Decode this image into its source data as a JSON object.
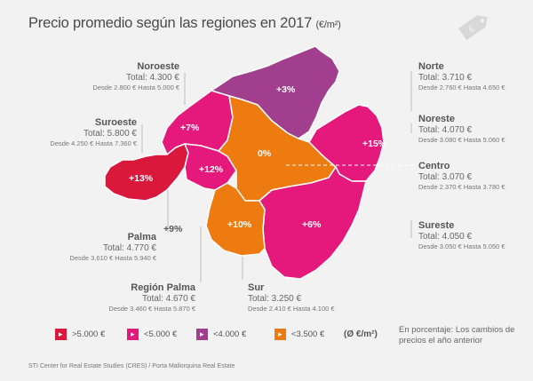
{
  "title": "Precio promedio según las regiones en 2017",
  "title_unit": "(€/m²)",
  "colors": {
    "red": "#d9183b",
    "pink": "#e5197c",
    "purple": "#a13f8e",
    "orange": "#ee7b10",
    "background": "#f2f2f2",
    "leader_line": "#bdbdbd"
  },
  "regions": {
    "noroeste": {
      "name": "Noroeste",
      "total": "Total: 4.300 €",
      "range": "Desde 2.800 € Hasta 5.000 €",
      "pct": "+7%"
    },
    "norte": {
      "name": "Norte",
      "total": "Total: 3.710 €",
      "range": "Desde 2.760 € Hasta 4.650 €",
      "pct": "+3%"
    },
    "suroeste": {
      "name": "Suroeste",
      "total": "Total: 5.800 €",
      "range": "Desde 4.250 € Hasta 7.360 €",
      "pct": "+13%"
    },
    "noreste": {
      "name": "Noreste",
      "total": "Total: 4.070 €",
      "range": "Desde 3.080 € Hasta 5.060 €",
      "pct": "+15%"
    },
    "centro": {
      "name": "Centro",
      "total": "Total: 3.070 €",
      "range": "Desde 2.370 € Hasta 3.780 €",
      "pct": "0%"
    },
    "palma": {
      "name": "Palma",
      "total": "Total: 4.770 €",
      "range": "Desde 3.610 € Hasta 5.940 €",
      "pct": "+9%"
    },
    "sureste": {
      "name": "Sureste",
      "total": "Total: 4.050 €",
      "range": "Desde 3.050 € Hasta 5.050 €",
      "pct": "+6%"
    },
    "region_palma": {
      "name": "Región Palma",
      "total": "Total: 4.670 €",
      "range": "Desde 3.460 € Hasta 5.870 €",
      "pct": "+12%"
    },
    "sur": {
      "name": "Sur",
      "total": "Total: 3.250 €",
      "range": "Desde 2.410 € Hasta 4.100 €",
      "pct": "+10%"
    }
  },
  "legend": {
    "items": [
      {
        "label": ">5.000 €",
        "color": "#d9183b"
      },
      {
        "label": "<5.000 €",
        "color": "#e5197c"
      },
      {
        "label": "<4.000 €",
        "color": "#a13f8e"
      },
      {
        "label": "<3.500 €",
        "color": "#ee7b10"
      }
    ],
    "unit": "(Ø €/m²)",
    "note": "En porcentaje: Los cambios de precios el año anterior"
  },
  "source": "STI Center for Real Estate Studies (CRES) / Porta Mallorquina Real Estate"
}
